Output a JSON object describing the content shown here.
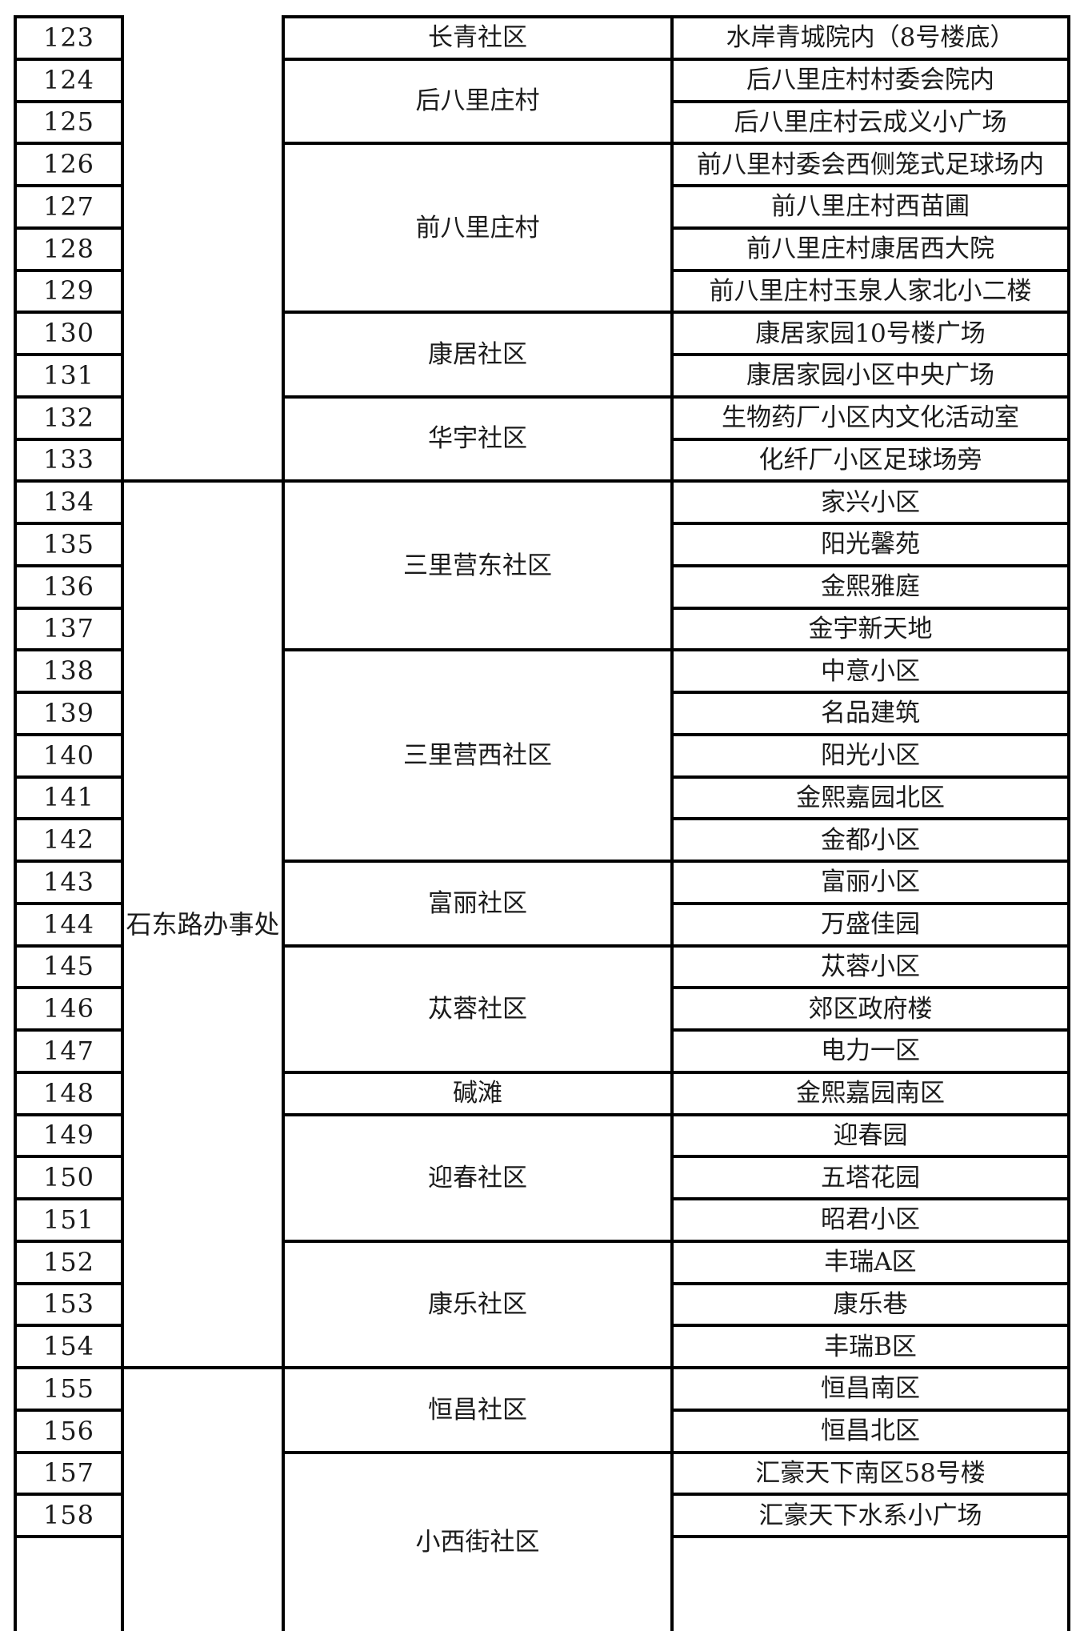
{
  "page": {
    "background": "#ffffff",
    "border_color": "#000000",
    "text_color": "#1b1b1b"
  },
  "table": {
    "row_numbers": [
      "123",
      "124",
      "125",
      "126",
      "127",
      "128",
      "129",
      "130",
      "131",
      "132",
      "133",
      "134",
      "135",
      "136",
      "137",
      "138",
      "139",
      "140",
      "141",
      "142",
      "143",
      "144",
      "145",
      "146",
      "147",
      "148",
      "149",
      "150",
      "151",
      "152",
      "153",
      "154",
      "155",
      "156",
      "157",
      "158"
    ],
    "groups": [
      {
        "office": "",
        "communities": [
          {
            "name": "长青社区",
            "locations": [
              "水岸青城院内（8号楼底）"
            ]
          },
          {
            "name": "后八里庄村",
            "locations": [
              "后八里庄村村委会院内",
              "后八里庄村云成义小广场"
            ]
          },
          {
            "name": "前八里庄村",
            "locations": [
              "前八里村委会西侧笼式足球场内",
              "前八里庄村西苗圃",
              "前八里庄村康居西大院",
              "前八里庄村玉泉人家北小二楼"
            ]
          },
          {
            "name": "康居社区",
            "locations": [
              "康居家园10号楼广场",
              "康居家园小区中央广场"
            ]
          },
          {
            "name": "华宇社区",
            "locations": [
              "生物药厂小区内文化活动室",
              "化纤厂小区足球场旁"
            ]
          }
        ]
      },
      {
        "office": "石东路办事处",
        "communities": [
          {
            "name": "三里营东社区",
            "locations": [
              "家兴小区",
              "阳光馨苑",
              "金熙雅庭",
              "金宇新天地"
            ]
          },
          {
            "name": "三里营西社区",
            "locations": [
              "中意小区",
              "名品建筑",
              "阳光小区",
              "金熙嘉园北区",
              "金都小区"
            ]
          },
          {
            "name": "富丽社区",
            "locations": [
              "富丽小区",
              "万盛佳园"
            ]
          },
          {
            "name": "苁蓉社区",
            "locations": [
              "苁蓉小区",
              "郊区政府楼",
              "电力一区"
            ]
          },
          {
            "name": "碱滩",
            "locations": [
              "金熙嘉园南区"
            ]
          },
          {
            "name": "迎春社区",
            "locations": [
              "迎春园",
              "五塔花园",
              "昭君小区"
            ]
          },
          {
            "name": "康乐社区",
            "locations": [
              "丰瑞A区",
              "康乐巷",
              "丰瑞B区"
            ]
          }
        ]
      },
      {
        "office": "",
        "communities": [
          {
            "name": "恒昌社区",
            "locations": [
              "恒昌南区",
              "恒昌北区"
            ]
          },
          {
            "name": "小西街社区",
            "locations": [
              "汇豪天下南区58号楼",
              "汇豪天下水系小广场"
            ]
          }
        ]
      }
    ]
  }
}
